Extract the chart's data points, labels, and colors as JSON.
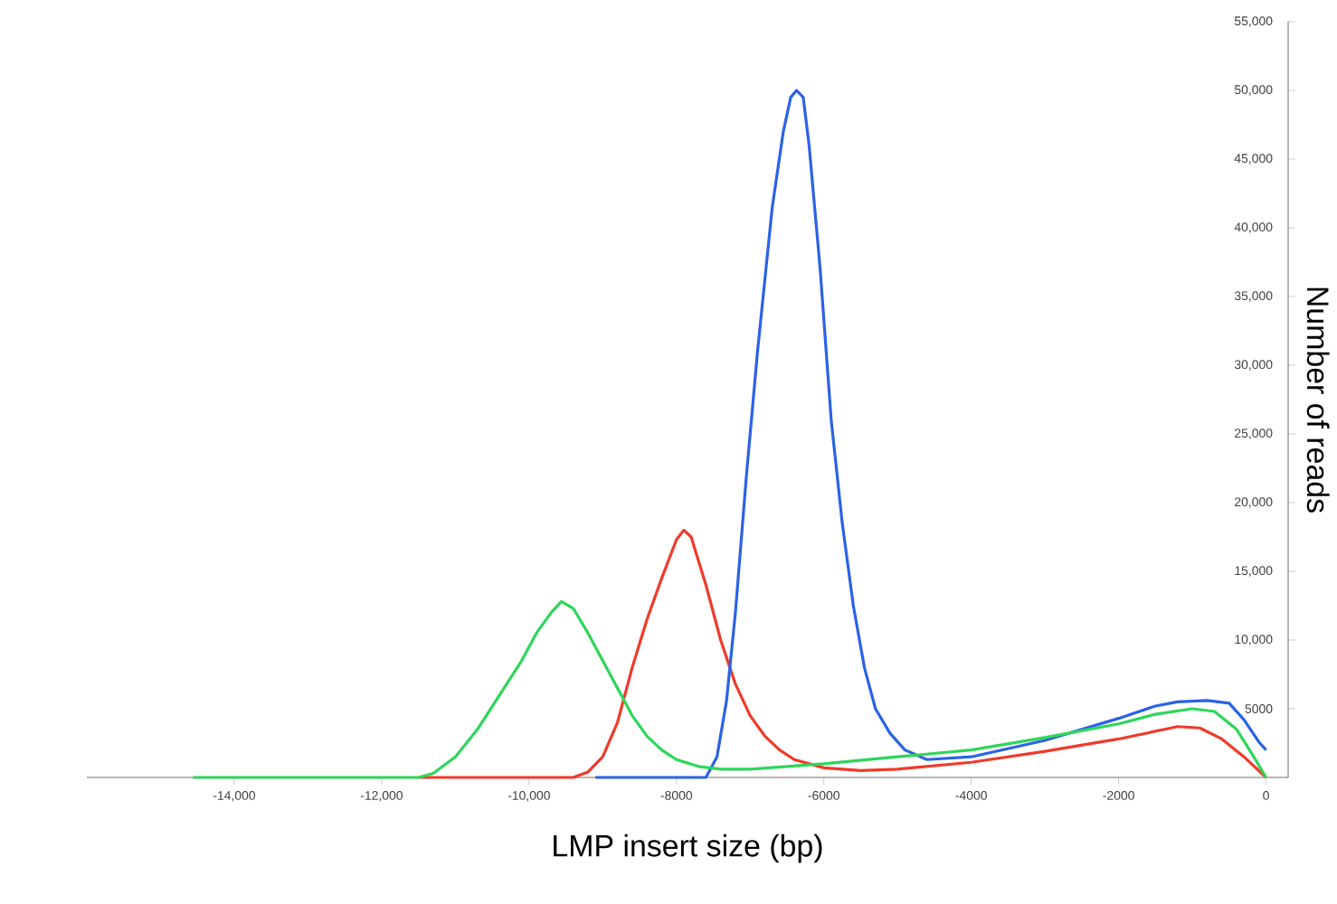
{
  "chart_data": {
    "type": "line",
    "xlabel": "LMP insert size (bp)",
    "ylabel": "Number of reads",
    "xlim": [
      -16000,
      300
    ],
    "ylim": [
      0,
      55000
    ],
    "xticks": [
      {
        "value": -14000,
        "label": "-14,000"
      },
      {
        "value": -12000,
        "label": "-12,000"
      },
      {
        "value": -10000,
        "label": "-10,000"
      },
      -8000,
      -6000,
      -4000,
      -2000,
      0
    ],
    "yticks": [
      5000,
      {
        "value": 10000,
        "label": "10,000"
      },
      {
        "value": 15000,
        "label": "15,000"
      },
      {
        "value": 20000,
        "label": "20,000"
      },
      {
        "value": 25000,
        "label": "25,000"
      },
      {
        "value": 30000,
        "label": "30,000"
      },
      {
        "value": 35000,
        "label": "35,000"
      },
      {
        "value": 40000,
        "label": "40,000"
      },
      {
        "value": 45000,
        "label": "45,000"
      },
      {
        "value": 50000,
        "label": "50,000"
      },
      {
        "value": 55000,
        "label": "55,000"
      }
    ],
    "grid": false,
    "series": [
      {
        "color": "#f03a2a",
        "x": [
          -11500,
          -9400,
          -9200,
          -9000,
          -8800,
          -8600,
          -8400,
          -8200,
          -8000,
          -7900,
          -7800,
          -7600,
          -7400,
          -7200,
          -7000,
          -6800,
          -6600,
          -6400,
          -6000,
          -5500,
          -5000,
          -4000,
          -3000,
          -2000,
          -1200,
          -900,
          -600,
          -300,
          0
        ],
        "values": [
          0,
          0,
          400,
          1500,
          4000,
          8000,
          11500,
          14500,
          17300,
          18000,
          17500,
          14000,
          10000,
          6800,
          4500,
          3000,
          2000,
          1300,
          700,
          500,
          600,
          1100,
          1900,
          2800,
          3700,
          3600,
          2800,
          1500,
          0
        ]
      },
      {
        "color": "#2a62e8",
        "x": [
          -9100,
          -7600,
          -7450,
          -7320,
          -7200,
          -7050,
          -6900,
          -6700,
          -6550,
          -6450,
          -6370,
          -6280,
          -6200,
          -6050,
          -5900,
          -5750,
          -5600,
          -5450,
          -5300,
          -5100,
          -4900,
          -4600,
          -4000,
          -3000,
          -2000,
          -1500,
          -1200,
          -800,
          -500,
          -300,
          -100,
          0
        ],
        "values": [
          0,
          0,
          1500,
          5600,
          12000,
          22000,
          31000,
          41500,
          47000,
          49500,
          50000,
          49500,
          46000,
          37000,
          26000,
          18500,
          12500,
          8000,
          5000,
          3200,
          2000,
          1300,
          1500,
          2700,
          4300,
          5200,
          5500,
          5600,
          5400,
          4200,
          2600,
          2000
        ]
      },
      {
        "color": "#2ed65a",
        "x": [
          -14560,
          -11500,
          -11300,
          -11000,
          -10700,
          -10400,
          -10100,
          -9900,
          -9700,
          -9560,
          -9400,
          -9200,
          -9000,
          -8800,
          -8600,
          -8400,
          -8200,
          -8000,
          -7700,
          -7400,
          -7000,
          -6500,
          -6000,
          -5000,
          -4000,
          -3000,
          -2000,
          -1500,
          -1000,
          -700,
          -400,
          -200,
          0
        ],
        "values": [
          0,
          0,
          300,
          1500,
          3500,
          6000,
          8500,
          10500,
          12000,
          12800,
          12300,
          10500,
          8500,
          6500,
          4500,
          3000,
          2000,
          1300,
          800,
          600,
          600,
          800,
          1000,
          1500,
          2000,
          2900,
          3900,
          4600,
          5000,
          4800,
          3500,
          1800,
          0
        ]
      }
    ]
  }
}
